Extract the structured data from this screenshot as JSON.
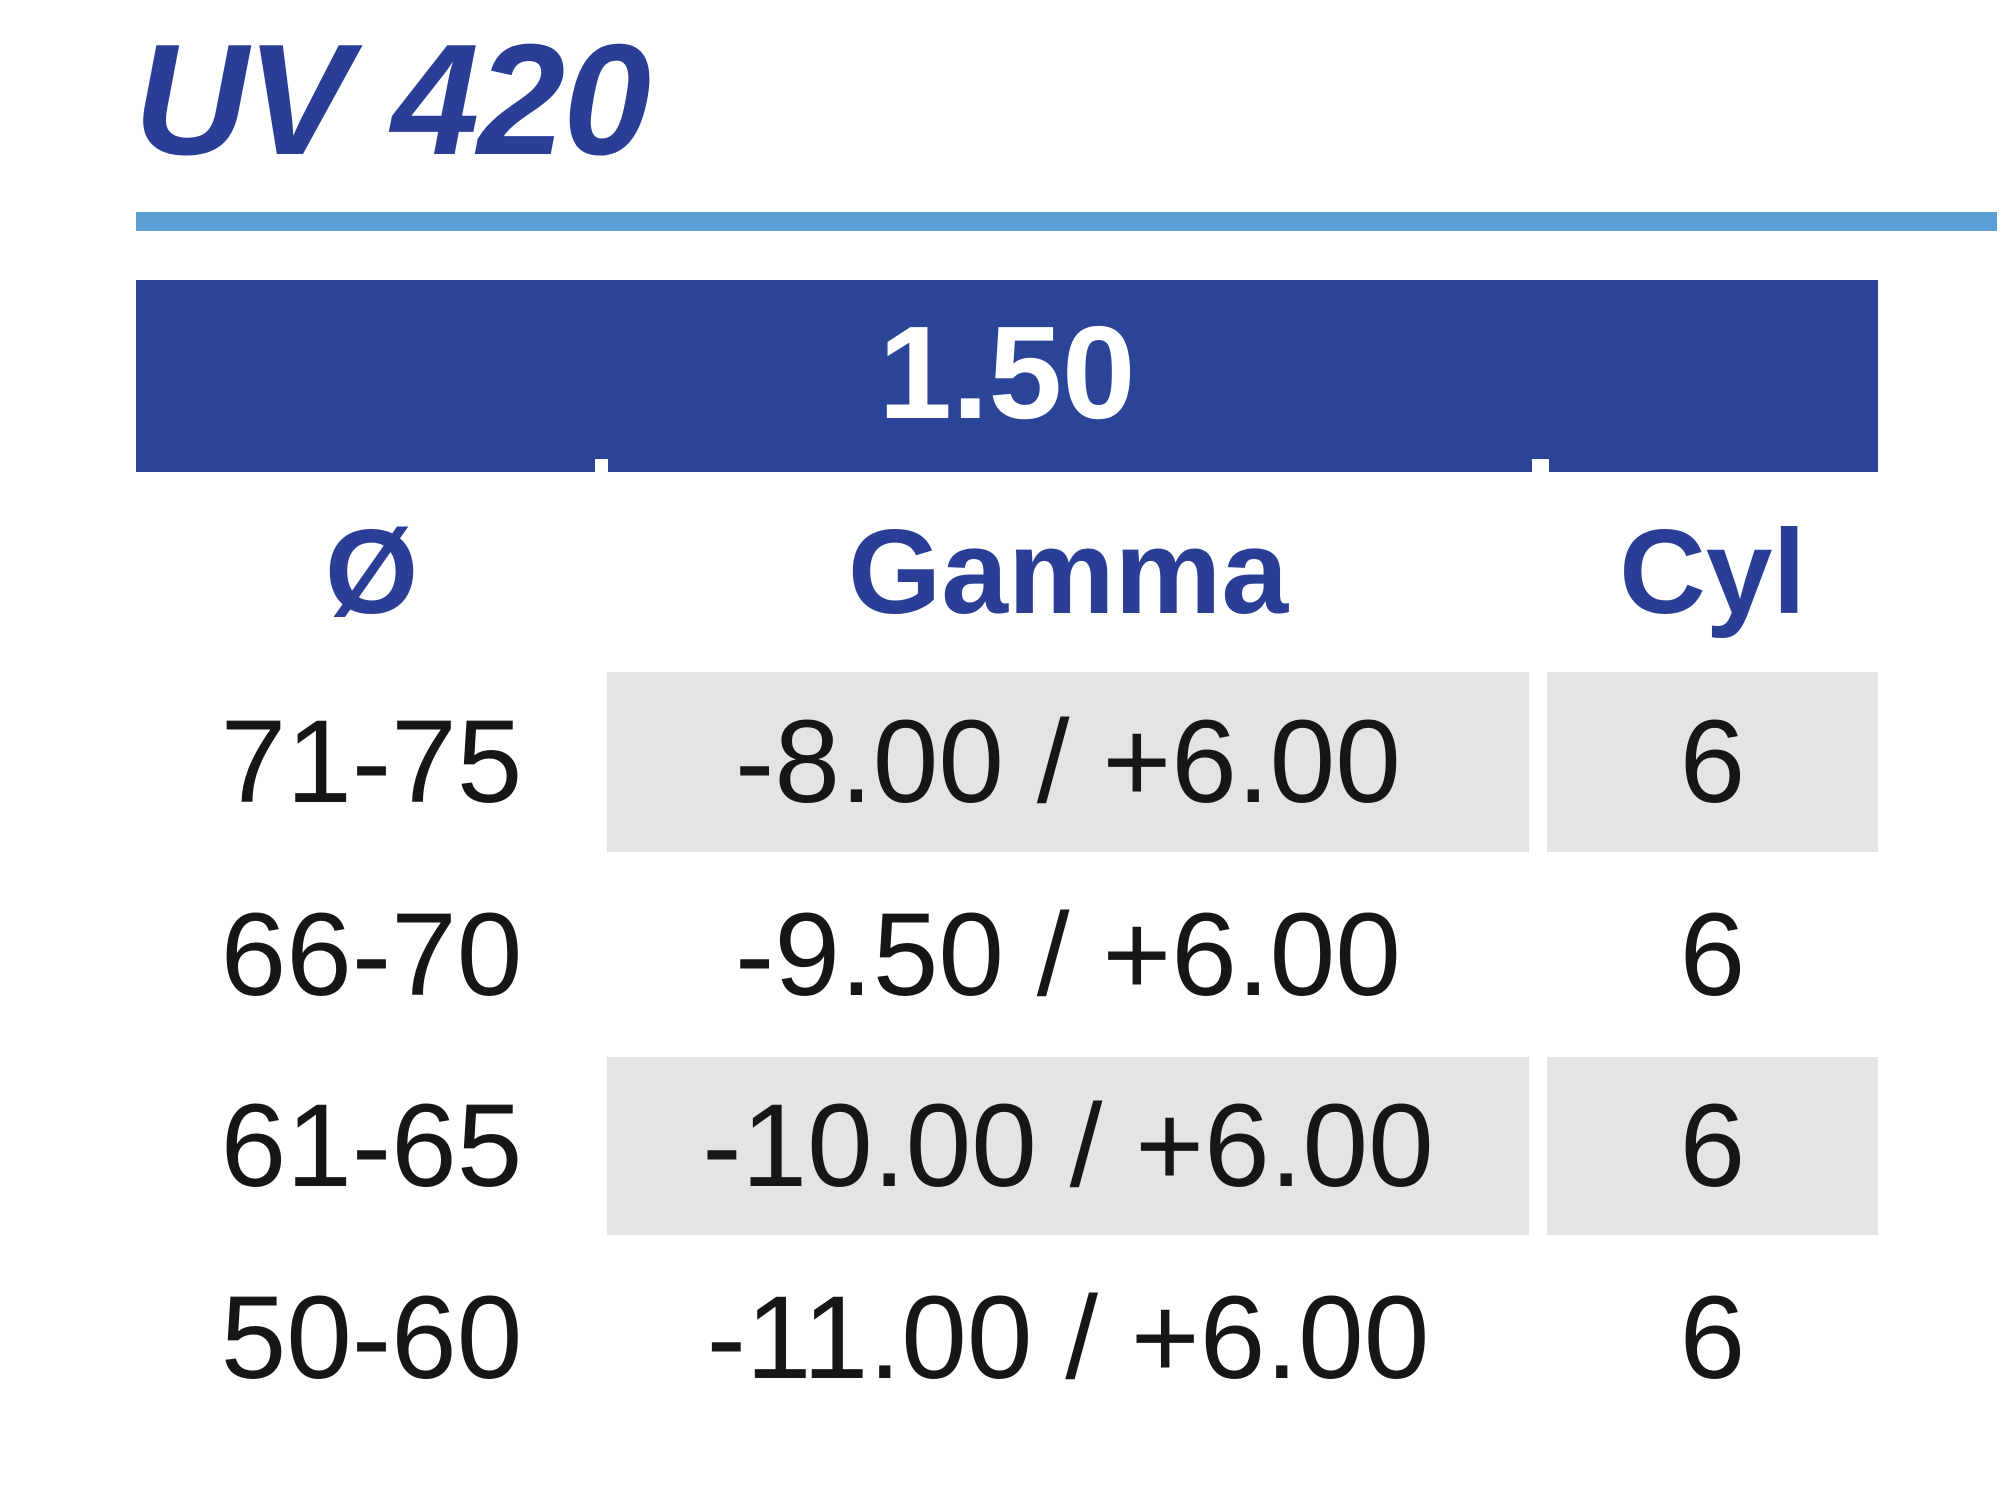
{
  "page": {
    "title": "UV 420"
  },
  "colors": {
    "title_blue": "#2a3e96",
    "band_blue": "#2a4497",
    "underline_light_blue": "#5c9fd6",
    "row_shade_gray": "#e5e4e3",
    "data_text": "#161616",
    "band_text": "#ffffff"
  },
  "table": {
    "index_header": "1.50",
    "columns": [
      "Ø",
      "Gamma",
      "Cyl"
    ],
    "rows": [
      {
        "diameter": "71-75",
        "gamma": "-8.00 / +6.00",
        "cyl": "6",
        "shaded": true
      },
      {
        "diameter": "66-70",
        "gamma": "-9.50 / +6.00",
        "cyl": "6",
        "shaded": false
      },
      {
        "diameter": "61-65",
        "gamma": "-10.00 / +6.00",
        "cyl": "6",
        "shaded": true
      },
      {
        "diameter": "50-60",
        "gamma": "-11.00 / +6.00",
        "cyl": "6",
        "shaded": false
      }
    ]
  }
}
